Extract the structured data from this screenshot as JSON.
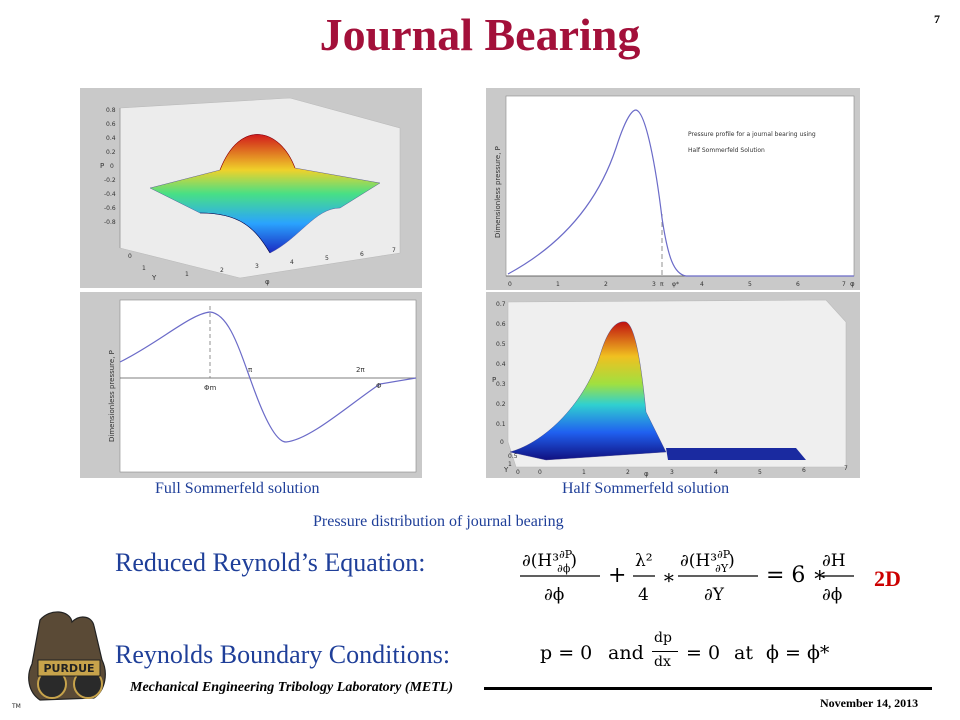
{
  "slide": {
    "title": "Journal Bearing",
    "number": "7"
  },
  "figures": {
    "full_caption": "Full Sommerfeld solution",
    "half_caption": "Half Sommerfeld solution",
    "overall_caption": "Pressure distribution of journal bearing",
    "plot_a": {
      "ylabel": "P",
      "xlabel_y": "Y",
      "xlabel_phi": "φ",
      "zticks": [
        "0.8",
        "0.6",
        "0.4",
        "0.2",
        "0",
        "-0.2",
        "-0.4",
        "-0.6",
        "-0.8"
      ],
      "yticks": [
        "0",
        "1"
      ],
      "xticks": [
        "1",
        "2",
        "3",
        "4",
        "5",
        "6",
        "7"
      ]
    },
    "plot_b": {
      "ylabel": "Dimensionless pressure, P",
      "legend_line1": "Pressure profile for a journal bearing using",
      "legend_line2": "Half Sommerfeld Solution",
      "xticks": [
        "0",
        "1",
        "2",
        "3",
        "π",
        "φ*",
        "4",
        "5",
        "6",
        "7"
      ],
      "axis_end": "φ"
    },
    "plot_c": {
      "ylabel": "Dimensionless pressure, P",
      "label_phim": "Φm",
      "label_pi": "π",
      "label_2pi": "2π",
      "label_phi": "Φ"
    },
    "plot_d": {
      "ylabel": "P",
      "zticks": [
        "0.7",
        "0.6",
        "0.5",
        "0.4",
        "0.3",
        "0.2",
        "0.1",
        "0"
      ],
      "xticks": [
        "0",
        "1",
        "2",
        "3",
        "4",
        "5",
        "6",
        "7"
      ],
      "yticks": [
        "0.5",
        "1",
        "0"
      ],
      "ylabel2": "Y",
      "xlabel": "φ"
    }
  },
  "equations": {
    "reduced_label": "Reduced Reynold’s Equation:",
    "reduced_tag": "2D",
    "boundary_label": "Reynolds Boundary Conditions:",
    "bc_p": "p = 0",
    "bc_and": "and",
    "bc_dp": "dp",
    "bc_dx": "dx",
    "bc_eq0": "= 0",
    "bc_at": "at",
    "bc_phi": "ϕ = ϕ*"
  },
  "footer": {
    "lab": "Mechanical Engineering Tribology Laboratory (METL)",
    "date": "November 14, 2013",
    "logo_text": "PURDUE",
    "logo_tm": "TM"
  },
  "colors": {
    "title": "#a3103a",
    "caption": "#1f3f99",
    "tag": "#cc0000",
    "curve": "#6b6bc8"
  }
}
